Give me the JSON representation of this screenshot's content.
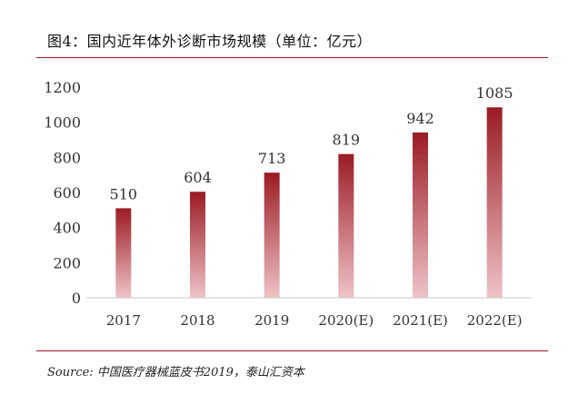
{
  "figure": {
    "title": "图4：国内近年体外诊断市场规模（单位：亿元）",
    "source": "Source: 中国医疗器械蓝皮书2019，泰山汇资本"
  },
  "colors": {
    "bar_dark": "#9b1b24",
    "bar_light": "#efc3c6",
    "rule": "#9b1b24",
    "axis": "#c8c8c8",
    "text": "#333333"
  },
  "chart_data": {
    "type": "bar",
    "categories": [
      "2017",
      "2018",
      "2019",
      "2020(E)",
      "2021(E)",
      "2022(E)"
    ],
    "values": [
      510,
      604,
      713,
      819,
      942,
      1085
    ],
    "data_labels": [
      "510",
      "604",
      "713",
      "819",
      "942",
      "1085"
    ],
    "ylim": [
      0,
      1200
    ],
    "yticks": [
      0,
      200,
      400,
      600,
      800,
      1000,
      1200
    ],
    "ytick_labels": [
      "0",
      "200",
      "400",
      "600",
      "800",
      "1000",
      "1200"
    ],
    "grid": false,
    "legend": "none"
  }
}
